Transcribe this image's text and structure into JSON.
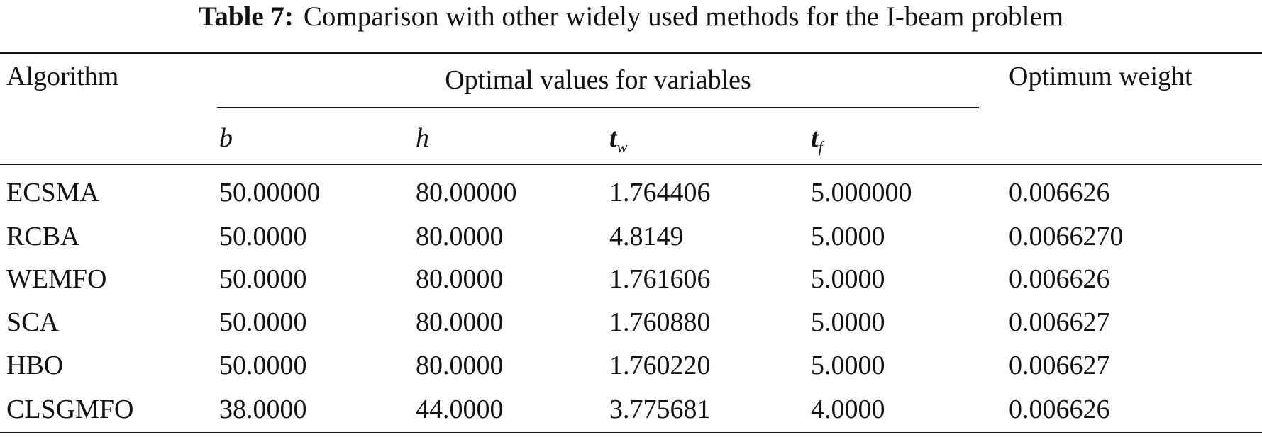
{
  "table": {
    "label": "Table 7:",
    "title": "Comparison with other widely used methods for the I-beam problem",
    "header": {
      "algorithm": "Algorithm",
      "group": "Optimal values for variables",
      "weight": "Optimum weight"
    },
    "subheader": [
      {
        "base": "b"
      },
      {
        "base": "h"
      },
      {
        "base": "t",
        "sub": "w"
      },
      {
        "base": "t",
        "sub": "f"
      }
    ],
    "rows": [
      [
        "ECSMA",
        "50.00000",
        "80.00000",
        "1.764406",
        "5.000000",
        "0.006626"
      ],
      [
        "RCBA",
        "50.0000",
        "80.0000",
        "4.8149",
        "5.0000",
        "0.0066270"
      ],
      [
        "WEMFO",
        "50.0000",
        "80.0000",
        "1.761606",
        "5.0000",
        "0.006626"
      ],
      [
        "SCA",
        "50.0000",
        "80.0000",
        "1.760880",
        "5.0000",
        "0.006627"
      ],
      [
        "HBO",
        "50.0000",
        "80.0000",
        "1.760220",
        "5.0000",
        "0.006627"
      ],
      [
        "CLSGMFO",
        "38.0000",
        "44.0000",
        "3.775681",
        "4.0000",
        "0.006626"
      ]
    ]
  }
}
